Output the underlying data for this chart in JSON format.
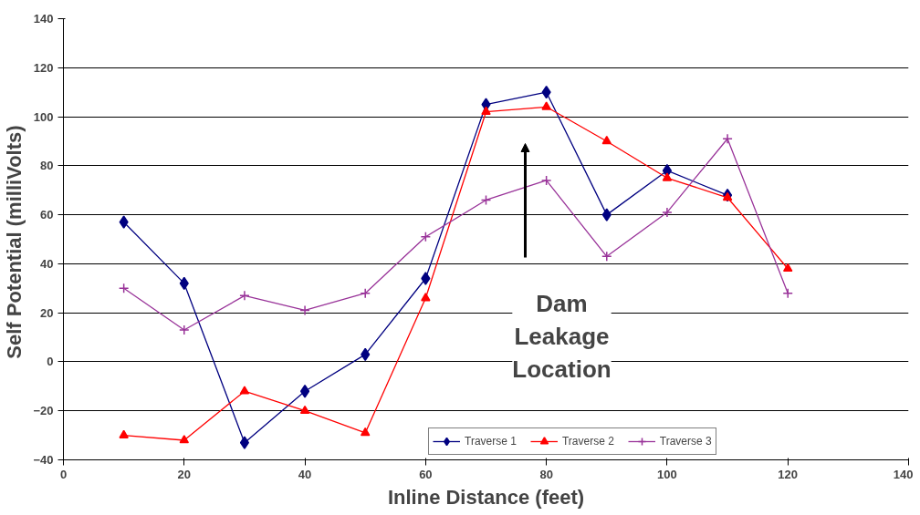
{
  "chart_data": {
    "type": "line",
    "xlabel": "Inline Distance (feet)",
    "ylabel": "Self Potential  (milliVolts)",
    "xlim": [
      0,
      140
    ],
    "xticks": [
      0,
      20,
      40,
      60,
      80,
      100,
      120,
      140
    ],
    "ylim": [
      -40,
      140
    ],
    "yticks": [
      -40,
      -20,
      0,
      20,
      40,
      60,
      80,
      100,
      120,
      140
    ],
    "grid": "y",
    "legend": "bottom",
    "annotations": [
      "Dam Leakage Location"
    ],
    "series": [
      {
        "name": "Traverse 1",
        "color": "#000080",
        "marker": "diamond",
        "x": [
          10,
          20,
          30,
          40,
          50,
          60,
          70,
          80,
          90,
          100,
          110
        ],
        "values": [
          57,
          32,
          -33,
          -12,
          3,
          34,
          105,
          110,
          60,
          78,
          68
        ]
      },
      {
        "name": "Traverse 2",
        "color": "#ff0000",
        "marker": "triangle",
        "x": [
          10,
          20,
          30,
          40,
          50,
          60,
          70,
          80,
          90,
          100,
          110,
          120
        ],
        "values": [
          -30,
          -32,
          -12,
          -20,
          -29,
          26,
          102,
          104,
          90,
          75,
          67,
          38
        ]
      },
      {
        "name": "Traverse 3",
        "color": "#993399",
        "marker": "cross",
        "x": [
          10,
          20,
          30,
          40,
          50,
          60,
          70,
          80,
          90,
          100,
          110,
          120
        ],
        "values": [
          30,
          13,
          27,
          21,
          28,
          51,
          66,
          74,
          43,
          61,
          91,
          28
        ]
      }
    ]
  }
}
